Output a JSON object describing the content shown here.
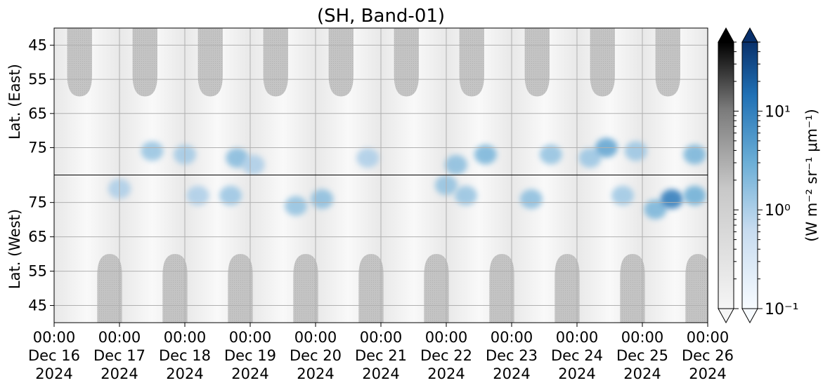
{
  "chart_data": {
    "type": "heatmap",
    "title": "(SH, Band-01)",
    "x_ticks": [
      {
        "time": "00:00",
        "date": "Dec 16",
        "year": "2024"
      },
      {
        "time": "00:00",
        "date": "Dec 17",
        "year": "2024"
      },
      {
        "time": "00:00",
        "date": "Dec 18",
        "year": "2024"
      },
      {
        "time": "00:00",
        "date": "Dec 19",
        "year": "2024"
      },
      {
        "time": "00:00",
        "date": "Dec 20",
        "year": "2024"
      },
      {
        "time": "00:00",
        "date": "Dec 21",
        "year": "2024"
      },
      {
        "time": "00:00",
        "date": "Dec 22",
        "year": "2024"
      },
      {
        "time": "00:00",
        "date": "Dec 23",
        "year": "2024"
      },
      {
        "time": "00:00",
        "date": "Dec 24",
        "year": "2024"
      },
      {
        "time": "00:00",
        "date": "Dec 25",
        "year": "2024"
      },
      {
        "time": "00:00",
        "date": "Dec 26",
        "year": "2024"
      }
    ],
    "panels": [
      {
        "ylabel": "Lat. (East)",
        "y_ticks": [
          "45",
          "55",
          "65",
          "75"
        ],
        "ylim": [
          40,
          83
        ]
      },
      {
        "ylabel": "Lat. (West)",
        "y_ticks": [
          "75",
          "65",
          "55",
          "45"
        ],
        "ylim": [
          83,
          40
        ]
      }
    ],
    "colorbar": {
      "scale": "log",
      "range": [
        0.1,
        50
      ],
      "label": "(W m⁻² sr⁻¹ μm⁻¹)",
      "ticks": [
        {
          "value": 0.1,
          "label": "10⁻¹"
        },
        {
          "value": 1,
          "label": "10⁰"
        },
        {
          "value": 10,
          "label": "10¹"
        }
      ],
      "bars": [
        "gray",
        "blue"
      ]
    },
    "grid": true,
    "colors": {
      "gray_high": "#000000",
      "gray_low": "#f5f5f5",
      "blue_high": "#08306b",
      "blue_low": "#f7fbff",
      "mask": "#c4c4c4"
    },
    "aurora_patches": [
      {
        "panel": "East",
        "day": 1.5,
        "lat": 76,
        "value": 1.5
      },
      {
        "panel": "East",
        "day": 2.0,
        "lat": 77,
        "value": 1.2
      },
      {
        "panel": "East",
        "day": 2.8,
        "lat": 78,
        "value": 2.0
      },
      {
        "panel": "East",
        "day": 3.05,
        "lat": 80,
        "value": 1.0
      },
      {
        "panel": "East",
        "day": 4.8,
        "lat": 78,
        "value": 1.0
      },
      {
        "panel": "East",
        "day": 6.6,
        "lat": 77,
        "value": 2.5
      },
      {
        "panel": "East",
        "day": 6.15,
        "lat": 80,
        "value": 1.8
      },
      {
        "panel": "East",
        "day": 7.6,
        "lat": 77,
        "value": 1.6
      },
      {
        "panel": "East",
        "day": 8.2,
        "lat": 78,
        "value": 1.4
      },
      {
        "panel": "East",
        "day": 8.45,
        "lat": 75,
        "value": 4.0
      },
      {
        "panel": "East",
        "day": 8.9,
        "lat": 76,
        "value": 1.4
      },
      {
        "panel": "East",
        "day": 9.8,
        "lat": 77,
        "value": 2.5
      },
      {
        "panel": "West",
        "day": 1.0,
        "lat": 79,
        "value": 1.0
      },
      {
        "panel": "West",
        "day": 2.2,
        "lat": 77,
        "value": 1.0
      },
      {
        "panel": "West",
        "day": 2.7,
        "lat": 77,
        "value": 1.4
      },
      {
        "panel": "West",
        "day": 3.7,
        "lat": 74,
        "value": 1.6
      },
      {
        "panel": "West",
        "day": 4.1,
        "lat": 76,
        "value": 1.8
      },
      {
        "panel": "West",
        "day": 6.3,
        "lat": 77,
        "value": 1.5
      },
      {
        "panel": "West",
        "day": 6.0,
        "lat": 80,
        "value": 1.6
      },
      {
        "panel": "West",
        "day": 7.3,
        "lat": 76,
        "value": 1.8
      },
      {
        "panel": "West",
        "day": 8.7,
        "lat": 77,
        "value": 1.3
      },
      {
        "panel": "West",
        "day": 9.2,
        "lat": 73,
        "value": 2.5
      },
      {
        "panel": "West",
        "day": 9.45,
        "lat": 76,
        "value": 12.0
      },
      {
        "panel": "West",
        "day": 9.8,
        "lat": 77,
        "value": 3.0
      }
    ]
  }
}
